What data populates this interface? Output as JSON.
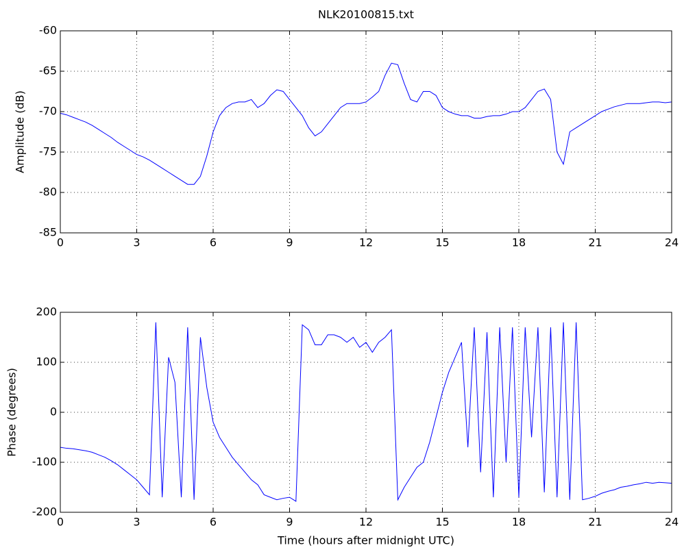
{
  "chart_data": [
    {
      "type": "line",
      "title": "NLK20100815.txt",
      "y_label": "Amplitude (dB)",
      "x": [
        0,
        0.25,
        0.5,
        0.75,
        1,
        1.25,
        1.5,
        1.75,
        2,
        2.25,
        2.5,
        2.75,
        3,
        3.25,
        3.5,
        3.75,
        4,
        4.25,
        4.5,
        4.75,
        5,
        5.25,
        5.5,
        5.75,
        6,
        6.25,
        6.5,
        6.75,
        7,
        7.25,
        7.5,
        7.75,
        8,
        8.25,
        8.5,
        8.75,
        9,
        9.25,
        9.5,
        9.75,
        10,
        10.25,
        10.5,
        10.75,
        11,
        11.25,
        11.5,
        11.75,
        12,
        12.25,
        12.5,
        12.75,
        13,
        13.25,
        13.5,
        13.75,
        14,
        14.25,
        14.5,
        14.75,
        15,
        15.25,
        15.5,
        15.75,
        16,
        16.25,
        16.5,
        16.75,
        17,
        17.25,
        17.5,
        17.75,
        18,
        18.25,
        18.5,
        18.75,
        19,
        19.25,
        19.5,
        19.75,
        20,
        20.25,
        20.5,
        20.75,
        21,
        21.25,
        21.5,
        21.75,
        22,
        22.25,
        22.5,
        22.75,
        23,
        23.25,
        23.5,
        23.75,
        24
      ],
      "values": [
        -70.2,
        -70.4,
        -70.7,
        -71,
        -71.3,
        -71.7,
        -72.2,
        -72.7,
        -73.2,
        -73.8,
        -74.3,
        -74.8,
        -75.3,
        -75.6,
        -76,
        -76.5,
        -77,
        -77.5,
        -78,
        -78.5,
        -79,
        -79,
        -78,
        -75.5,
        -72.5,
        -70.5,
        -69.5,
        -69,
        -68.8,
        -68.8,
        -68.5,
        -69.5,
        -69,
        -68,
        -67.3,
        -67.5,
        -68.5,
        -69.5,
        -70.5,
        -72,
        -73,
        -72.5,
        -71.5,
        -70.5,
        -69.5,
        -69,
        -69,
        -69,
        -68.8,
        -68.2,
        -67.5,
        -65.5,
        -64,
        -64.2,
        -66.5,
        -68.5,
        -68.8,
        -67.5,
        -67.5,
        -68,
        -69.5,
        -70,
        -70.3,
        -70.5,
        -70.5,
        -70.8,
        -70.8,
        -70.6,
        -70.5,
        -70.5,
        -70.3,
        -70,
        -70,
        -69.5,
        -68.5,
        -67.5,
        -67.2,
        -68.5,
        -75,
        -76.5,
        -72.5,
        -72,
        -71.5,
        -71,
        -70.5,
        -70,
        -69.7,
        -69.4,
        -69.2,
        -69,
        -69,
        -69,
        -68.9,
        -68.8,
        -68.8,
        -68.9,
        -68.8
      ],
      "color": "#0000ff",
      "xlim": [
        0,
        24
      ],
      "ylim": [
        -85,
        -60
      ],
      "xticks": [
        0,
        3,
        6,
        9,
        12,
        15,
        18,
        21,
        24
      ],
      "yticks": [
        -85,
        -80,
        -75,
        -70,
        -65,
        -60
      ],
      "grid": true
    },
    {
      "type": "line",
      "x_label": "Time (hours after midnight UTC)",
      "y_label": "Phase (degrees)",
      "x": [
        0,
        0.25,
        0.5,
        0.75,
        1,
        1.25,
        1.5,
        1.75,
        2,
        2.25,
        2.5,
        2.75,
        3,
        3.25,
        3.5,
        3.75,
        4,
        4.25,
        4.5,
        4.75,
        5,
        5.25,
        5.5,
        5.75,
        6,
        6.25,
        6.5,
        6.75,
        7,
        7.25,
        7.5,
        7.75,
        8,
        8.25,
        8.5,
        8.75,
        9,
        9.25,
        9.5,
        9.75,
        10,
        10.25,
        10.5,
        10.75,
        11,
        11.25,
        11.5,
        11.75,
        12,
        12.25,
        12.5,
        12.75,
        13,
        13.25,
        13.5,
        13.75,
        14,
        14.25,
        14.5,
        14.75,
        15,
        15.25,
        15.5,
        15.75,
        16,
        16.25,
        16.5,
        16.75,
        17,
        17.25,
        17.5,
        17.75,
        18,
        18.25,
        18.5,
        18.75,
        19,
        19.25,
        19.5,
        19.75,
        20,
        20.25,
        20.5,
        20.75,
        21,
        21.25,
        21.5,
        21.75,
        22,
        22.25,
        22.5,
        22.75,
        23,
        23.25,
        23.5,
        23.75,
        24
      ],
      "values": [
        -70,
        -72,
        -73,
        -75,
        -77,
        -80,
        -85,
        -90,
        -97,
        -105,
        -115,
        -125,
        -135,
        -150,
        -165,
        180,
        -170,
        110,
        60,
        -170,
        170,
        -175,
        150,
        50,
        -20,
        -50,
        -70,
        -90,
        -105,
        -120,
        -135,
        -145,
        -165,
        -170,
        -175,
        -172,
        -170,
        -178,
        175,
        165,
        135,
        135,
        155,
        155,
        150,
        140,
        150,
        130,
        140,
        120,
        140,
        150,
        165,
        -175,
        -150,
        -130,
        -110,
        -100,
        -60,
        -10,
        40,
        80,
        110,
        140,
        -70,
        170,
        -120,
        160,
        -170,
        170,
        -100,
        170,
        -170,
        170,
        -50,
        170,
        -160,
        170,
        -170,
        180,
        -175,
        180,
        -175,
        -172,
        -168,
        -162,
        -158,
        -155,
        -150,
        -148,
        -145,
        -143,
        -140,
        -142,
        -140,
        -141,
        -142
      ],
      "color": "#0000ff",
      "xlim": [
        0,
        24
      ],
      "ylim": [
        -200,
        200
      ],
      "xticks": [
        0,
        3,
        6,
        9,
        12,
        15,
        18,
        21,
        24
      ],
      "yticks": [
        -200,
        -100,
        0,
        100,
        200
      ],
      "grid": true
    }
  ]
}
